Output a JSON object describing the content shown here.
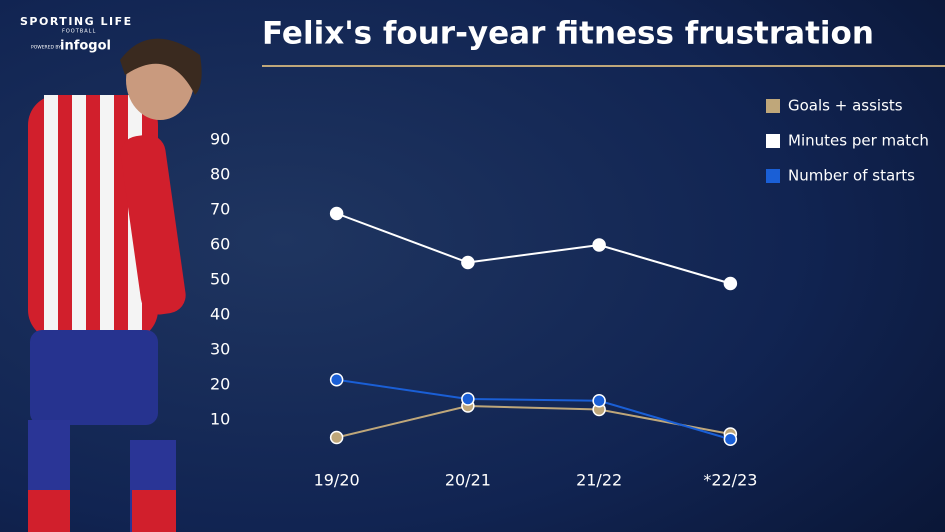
{
  "branding": {
    "name": "SPORTING LIFE",
    "section": "FOOTBALL",
    "powered_by": "POWERED BY",
    "partner": "infogol"
  },
  "chart_data": {
    "type": "line",
    "title": "Felix's four-year fitness frustration",
    "categories": [
      "19/20",
      "20/21",
      "21/22",
      "*22/23"
    ],
    "series": [
      {
        "name": "Goals + assists",
        "color": "#bfa77a",
        "values": [
          5,
          14,
          13,
          6
        ]
      },
      {
        "name": "Minutes per match",
        "color": "#ffffff",
        "values": [
          69,
          55,
          60,
          49
        ]
      },
      {
        "name": "Number of starts",
        "color": "#1a5fd6",
        "values": [
          21.5,
          16,
          15.5,
          4.5
        ]
      }
    ],
    "ylim": [
      0,
      90
    ],
    "yticks": [
      10,
      20,
      30,
      40,
      50,
      60,
      70,
      80,
      90
    ],
    "grid": false,
    "legend": "top-right"
  }
}
